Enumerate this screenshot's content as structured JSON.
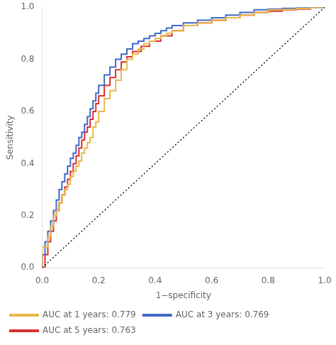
{
  "chart_data": {
    "type": "line",
    "xlabel": "1−specificity",
    "ylabel": "Sensitivity",
    "xlim": [
      0.0,
      1.0
    ],
    "ylim": [
      0.0,
      1.0
    ],
    "xticks": [
      {
        "value": 0.0,
        "label": "0.0"
      },
      0.2,
      0.4,
      0.6,
      0.8,
      {
        "value": 1.0,
        "label": "1.0"
      }
    ],
    "yticks": [
      {
        "value": 0.0,
        "label": "0.0"
      },
      0.2,
      0.4,
      0.6,
      0.8,
      {
        "value": 1.0,
        "label": "1.0"
      }
    ],
    "grid": false,
    "legend": "bottom",
    "series": [
      {
        "color": "#000000",
        "line_style": "dotted",
        "x": [
          0,
          1
        ],
        "values": [
          0,
          1
        ]
      },
      {
        "name": "AUC at 1 years: 0.779",
        "color": "#E8B84B",
        "line_style": "steps",
        "x": [
          0.0,
          0.0,
          0.02,
          0.02,
          0.03,
          0.03,
          0.04,
          0.04,
          0.05,
          0.05,
          0.06,
          0.06,
          0.07,
          0.07,
          0.08,
          0.08,
          0.09,
          0.09,
          0.1,
          0.1,
          0.11,
          0.11,
          0.12,
          0.12,
          0.13,
          0.13,
          0.14,
          0.14,
          0.15,
          0.15,
          0.16,
          0.16,
          0.17,
          0.17,
          0.18,
          0.18,
          0.19,
          0.19,
          0.2,
          0.2,
          0.22,
          0.22,
          0.24,
          0.24,
          0.26,
          0.26,
          0.28,
          0.28,
          0.3,
          0.3,
          0.32,
          0.32,
          0.34,
          0.34,
          0.36,
          0.36,
          0.38,
          0.38,
          0.4,
          0.4,
          0.42,
          0.42,
          0.44,
          0.44,
          0.46,
          0.46,
          0.5,
          0.5,
          0.55,
          0.55,
          0.6,
          0.6,
          0.65,
          0.65,
          0.7,
          0.7,
          0.75,
          0.75,
          0.8,
          0.8,
          0.85,
          0.85,
          0.9,
          0.9,
          0.95,
          0.95,
          1.0
        ],
        "values": [
          0.0,
          0.08,
          0.08,
          0.12,
          0.12,
          0.16,
          0.16,
          0.2,
          0.2,
          0.22,
          0.22,
          0.25,
          0.25,
          0.28,
          0.28,
          0.3,
          0.3,
          0.32,
          0.32,
          0.35,
          0.35,
          0.37,
          0.37,
          0.39,
          0.39,
          0.41,
          0.41,
          0.44,
          0.44,
          0.46,
          0.46,
          0.48,
          0.48,
          0.5,
          0.5,
          0.54,
          0.54,
          0.56,
          0.56,
          0.6,
          0.6,
          0.65,
          0.65,
          0.68,
          0.68,
          0.72,
          0.72,
          0.76,
          0.76,
          0.8,
          0.8,
          0.82,
          0.82,
          0.84,
          0.84,
          0.86,
          0.86,
          0.87,
          0.87,
          0.88,
          0.88,
          0.89,
          0.89,
          0.9,
          0.9,
          0.91,
          0.91,
          0.93,
          0.93,
          0.94,
          0.94,
          0.95,
          0.95,
          0.96,
          0.96,
          0.97,
          0.97,
          0.98,
          0.98,
          0.99,
          0.99,
          0.992,
          0.992,
          0.995,
          0.995,
          1.0,
          1.0
        ]
      },
      {
        "name": "AUC at 3 years: 0.769",
        "color": "#4169C8",
        "line_style": "steps",
        "x": [
          0.0,
          0.0,
          0.01,
          0.01,
          0.02,
          0.02,
          0.03,
          0.03,
          0.04,
          0.04,
          0.05,
          0.05,
          0.06,
          0.06,
          0.07,
          0.07,
          0.08,
          0.08,
          0.09,
          0.09,
          0.1,
          0.1,
          0.11,
          0.11,
          0.12,
          0.12,
          0.13,
          0.13,
          0.14,
          0.14,
          0.15,
          0.15,
          0.16,
          0.16,
          0.17,
          0.17,
          0.18,
          0.18,
          0.19,
          0.19,
          0.2,
          0.2,
          0.22,
          0.22,
          0.24,
          0.24,
          0.26,
          0.26,
          0.28,
          0.28,
          0.3,
          0.3,
          0.32,
          0.32,
          0.34,
          0.34,
          0.36,
          0.36,
          0.38,
          0.38,
          0.4,
          0.4,
          0.42,
          0.42,
          0.44,
          0.44,
          0.46,
          0.46,
          0.5,
          0.5,
          0.55,
          0.55,
          0.6,
          0.6,
          0.65,
          0.65,
          0.7,
          0.7,
          0.75,
          0.75,
          0.8,
          0.8,
          0.85,
          0.85,
          0.9,
          0.9,
          0.95,
          0.95,
          1.0
        ],
        "values": [
          0.0,
          0.05,
          0.05,
          0.1,
          0.1,
          0.14,
          0.14,
          0.18,
          0.18,
          0.22,
          0.22,
          0.26,
          0.26,
          0.3,
          0.3,
          0.33,
          0.33,
          0.36,
          0.36,
          0.39,
          0.39,
          0.42,
          0.42,
          0.44,
          0.44,
          0.47,
          0.47,
          0.5,
          0.5,
          0.52,
          0.52,
          0.55,
          0.55,
          0.58,
          0.58,
          0.61,
          0.61,
          0.64,
          0.64,
          0.67,
          0.67,
          0.7,
          0.7,
          0.74,
          0.74,
          0.77,
          0.77,
          0.8,
          0.8,
          0.82,
          0.82,
          0.84,
          0.84,
          0.86,
          0.86,
          0.87,
          0.87,
          0.88,
          0.88,
          0.89,
          0.89,
          0.9,
          0.9,
          0.91,
          0.91,
          0.92,
          0.92,
          0.93,
          0.93,
          0.94,
          0.94,
          0.95,
          0.95,
          0.96,
          0.96,
          0.97,
          0.97,
          0.98,
          0.98,
          0.99,
          0.99,
          0.993,
          0.993,
          0.996,
          0.996,
          0.998,
          0.998,
          1.0,
          1.0
        ]
      },
      {
        "name": "AUC at 5 years: 0.763",
        "color": "#D93030",
        "line_style": "steps",
        "x": [
          0.0,
          0.0,
          0.01,
          0.01,
          0.02,
          0.02,
          0.03,
          0.03,
          0.04,
          0.04,
          0.05,
          0.05,
          0.06,
          0.06,
          0.07,
          0.07,
          0.08,
          0.08,
          0.09,
          0.09,
          0.1,
          0.1,
          0.11,
          0.11,
          0.12,
          0.12,
          0.13,
          0.13,
          0.14,
          0.14,
          0.15,
          0.15,
          0.16,
          0.16,
          0.17,
          0.17,
          0.18,
          0.18,
          0.19,
          0.19,
          0.2,
          0.2,
          0.22,
          0.22,
          0.24,
          0.24,
          0.26,
          0.26,
          0.28,
          0.28,
          0.3,
          0.3,
          0.32,
          0.32,
          0.35,
          0.35,
          0.38,
          0.38,
          0.42,
          0.42,
          0.46,
          0.46,
          0.5,
          0.5,
          0.55,
          0.55,
          0.6,
          0.6,
          0.65,
          0.65,
          0.7,
          0.7,
          0.75,
          0.75,
          0.8,
          0.8,
          0.85,
          0.85,
          0.9,
          0.9,
          0.95,
          0.95,
          1.0
        ],
        "values": [
          0.0,
          0.0,
          0.0,
          0.05,
          0.05,
          0.1,
          0.1,
          0.14,
          0.14,
          0.18,
          0.18,
          0.22,
          0.22,
          0.25,
          0.25,
          0.28,
          0.28,
          0.31,
          0.31,
          0.34,
          0.34,
          0.37,
          0.37,
          0.4,
          0.4,
          0.43,
          0.43,
          0.46,
          0.46,
          0.49,
          0.49,
          0.52,
          0.52,
          0.54,
          0.54,
          0.57,
          0.57,
          0.6,
          0.6,
          0.63,
          0.63,
          0.66,
          0.66,
          0.7,
          0.7,
          0.73,
          0.73,
          0.76,
          0.76,
          0.79,
          0.79,
          0.81,
          0.81,
          0.83,
          0.83,
          0.85,
          0.85,
          0.87,
          0.87,
          0.89,
          0.89,
          0.91,
          0.91,
          0.93,
          0.93,
          0.94,
          0.94,
          0.95,
          0.95,
          0.96,
          0.96,
          0.97,
          0.97,
          0.98,
          0.98,
          0.985,
          0.985,
          0.99,
          0.99,
          0.993,
          0.993,
          1.0,
          1.0
        ]
      }
    ]
  }
}
